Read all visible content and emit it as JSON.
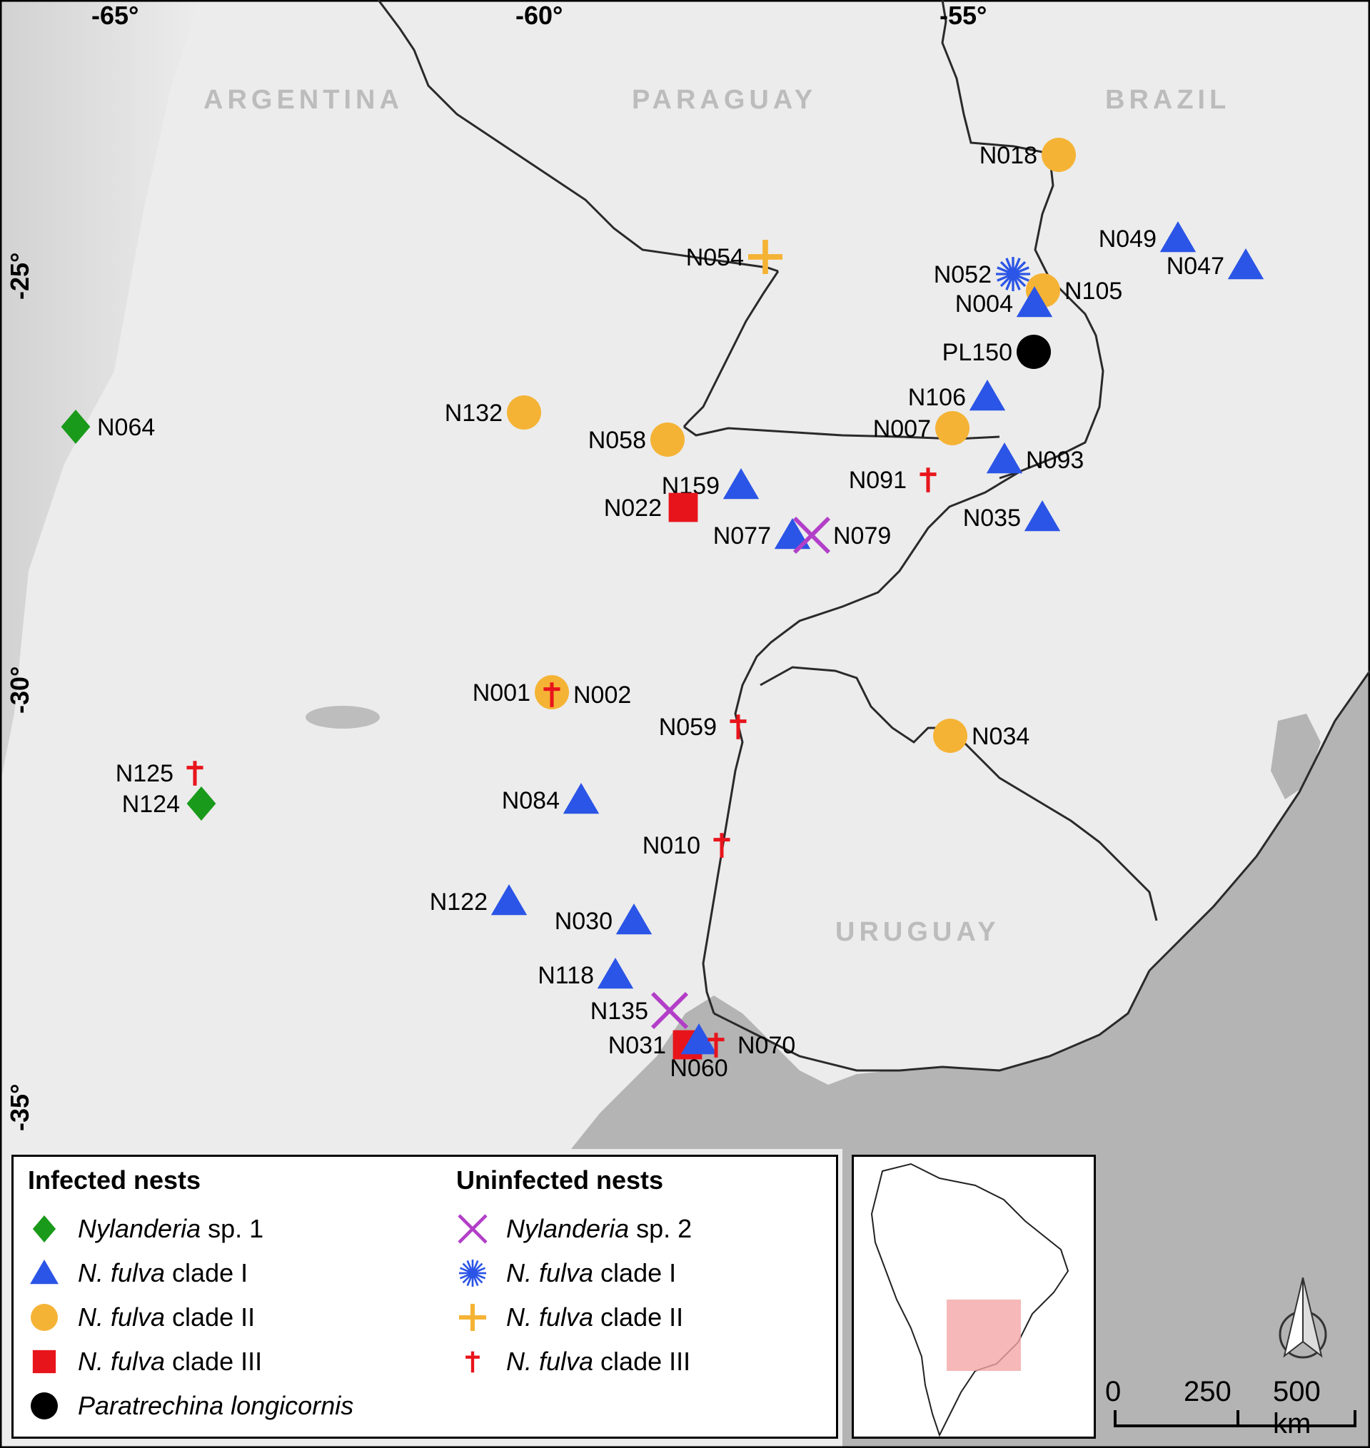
{
  "country_labels": [
    {
      "key": "argentina",
      "text": "ARGENTINA"
    },
    {
      "key": "paraguay",
      "text": "PARAGUAY"
    },
    {
      "key": "brazil",
      "text": "BRAZIL"
    },
    {
      "key": "uruguay",
      "text": "URUGUAY"
    }
  ],
  "graticule": {
    "longitudes": [
      "-65°",
      "-60°",
      "-55°"
    ],
    "latitudes": [
      "-25°",
      "-30°",
      "-35°"
    ]
  },
  "colors": {
    "land": "#ececec",
    "sea": "#b4b4b4",
    "border": "#2a2a2a",
    "relief": "#c9c9c9",
    "nylanderia_sp1": "#1a9a1a",
    "clade_I": "#2b55e6",
    "clade_II": "#f5b335",
    "clade_III": "#e8141c",
    "nylanderia_sp2": "#b23fc7",
    "paratrechina": "#000000",
    "inset_highlight": "#f4a6a6"
  },
  "sites": [
    {
      "label": "N018",
      "symbol": "circle",
      "color": "clade_II"
    },
    {
      "label": "N054",
      "symbol": "plus",
      "color": "clade_II"
    },
    {
      "label": "N052",
      "symbol": "star",
      "color": "clade_I"
    },
    {
      "label": "N105",
      "symbol": "circle",
      "color": "clade_II"
    },
    {
      "label": "N004",
      "symbol": "triangle",
      "color": "clade_I"
    },
    {
      "label": "N049",
      "symbol": "triangle",
      "color": "clade_I"
    },
    {
      "label": "N047",
      "symbol": "triangle",
      "color": "clade_I"
    },
    {
      "label": "PL150",
      "symbol": "circle",
      "color": "paratrechina"
    },
    {
      "label": "N106",
      "symbol": "triangle",
      "color": "clade_I"
    },
    {
      "label": "N007",
      "symbol": "circle",
      "color": "clade_II"
    },
    {
      "label": "N093",
      "symbol": "triangle",
      "color": "clade_I"
    },
    {
      "label": "N091",
      "symbol": "cross",
      "color": "clade_III"
    },
    {
      "label": "N035",
      "symbol": "triangle",
      "color": "clade_I"
    },
    {
      "label": "N064",
      "symbol": "diamond",
      "color": "nylanderia_sp1"
    },
    {
      "label": "N132",
      "symbol": "circle",
      "color": "clade_II"
    },
    {
      "label": "N058",
      "symbol": "circle",
      "color": "clade_II"
    },
    {
      "label": "N159",
      "symbol": "triangle",
      "color": "clade_I"
    },
    {
      "label": "N022",
      "symbol": "square",
      "color": "clade_III"
    },
    {
      "label": "N077",
      "symbol": "triangle",
      "color": "clade_I"
    },
    {
      "label": "N079",
      "symbol": "x",
      "color": "nylanderia_sp2"
    },
    {
      "label": "N001",
      "symbol": "circle",
      "color": "clade_II"
    },
    {
      "label": "N002",
      "symbol": "cross",
      "color": "clade_III"
    },
    {
      "label": "N059",
      "symbol": "cross",
      "color": "clade_III"
    },
    {
      "label": "N034",
      "symbol": "circle",
      "color": "clade_II"
    },
    {
      "label": "N125",
      "symbol": "cross",
      "color": "clade_III"
    },
    {
      "label": "N124",
      "symbol": "diamond",
      "color": "nylanderia_sp1"
    },
    {
      "label": "N084",
      "symbol": "triangle",
      "color": "clade_I"
    },
    {
      "label": "N010",
      "symbol": "cross",
      "color": "clade_III"
    },
    {
      "label": "N122",
      "symbol": "triangle",
      "color": "clade_I"
    },
    {
      "label": "N030",
      "symbol": "triangle",
      "color": "clade_I"
    },
    {
      "label": "N118",
      "symbol": "triangle",
      "color": "clade_I"
    },
    {
      "label": "N135",
      "symbol": "x",
      "color": "nylanderia_sp2"
    },
    {
      "label": "N031",
      "symbol": "square",
      "color": "clade_III"
    },
    {
      "label": "N060",
      "symbol": "triangle",
      "color": "clade_I"
    },
    {
      "label": "N070",
      "symbol": "cross",
      "color": "clade_III"
    }
  ],
  "legend": {
    "infected_title": "Infected nests",
    "uninfected_title": "Uninfected nests",
    "infected": [
      {
        "symbol": "diamond",
        "color": "nylanderia_sp1",
        "italic": "Nylanderia",
        "rest": " sp. 1"
      },
      {
        "symbol": "triangle",
        "color": "clade_I",
        "italic": "N. fulva",
        "rest": " clade I"
      },
      {
        "symbol": "circle",
        "color": "clade_II",
        "italic": "N. fulva",
        "rest": " clade II"
      },
      {
        "symbol": "square",
        "color": "clade_III",
        "italic": "N. fulva",
        "rest": " clade III"
      },
      {
        "symbol": "circle",
        "color": "paratrechina",
        "italic": "Paratrechina longicornis",
        "rest": ""
      }
    ],
    "uninfected": [
      {
        "symbol": "x",
        "color": "nylanderia_sp2",
        "italic": "Nylanderia",
        "rest": " sp. 2"
      },
      {
        "symbol": "star",
        "color": "clade_I",
        "italic": "N. fulva",
        "rest": " clade I"
      },
      {
        "symbol": "plus",
        "color": "clade_II",
        "italic": "N. fulva",
        "rest": " clade II"
      },
      {
        "symbol": "cross",
        "color": "clade_III",
        "italic": "N. fulva",
        "rest": " clade III"
      }
    ]
  },
  "scale_bar": {
    "labels": [
      "0",
      "250",
      "500 km"
    ]
  }
}
